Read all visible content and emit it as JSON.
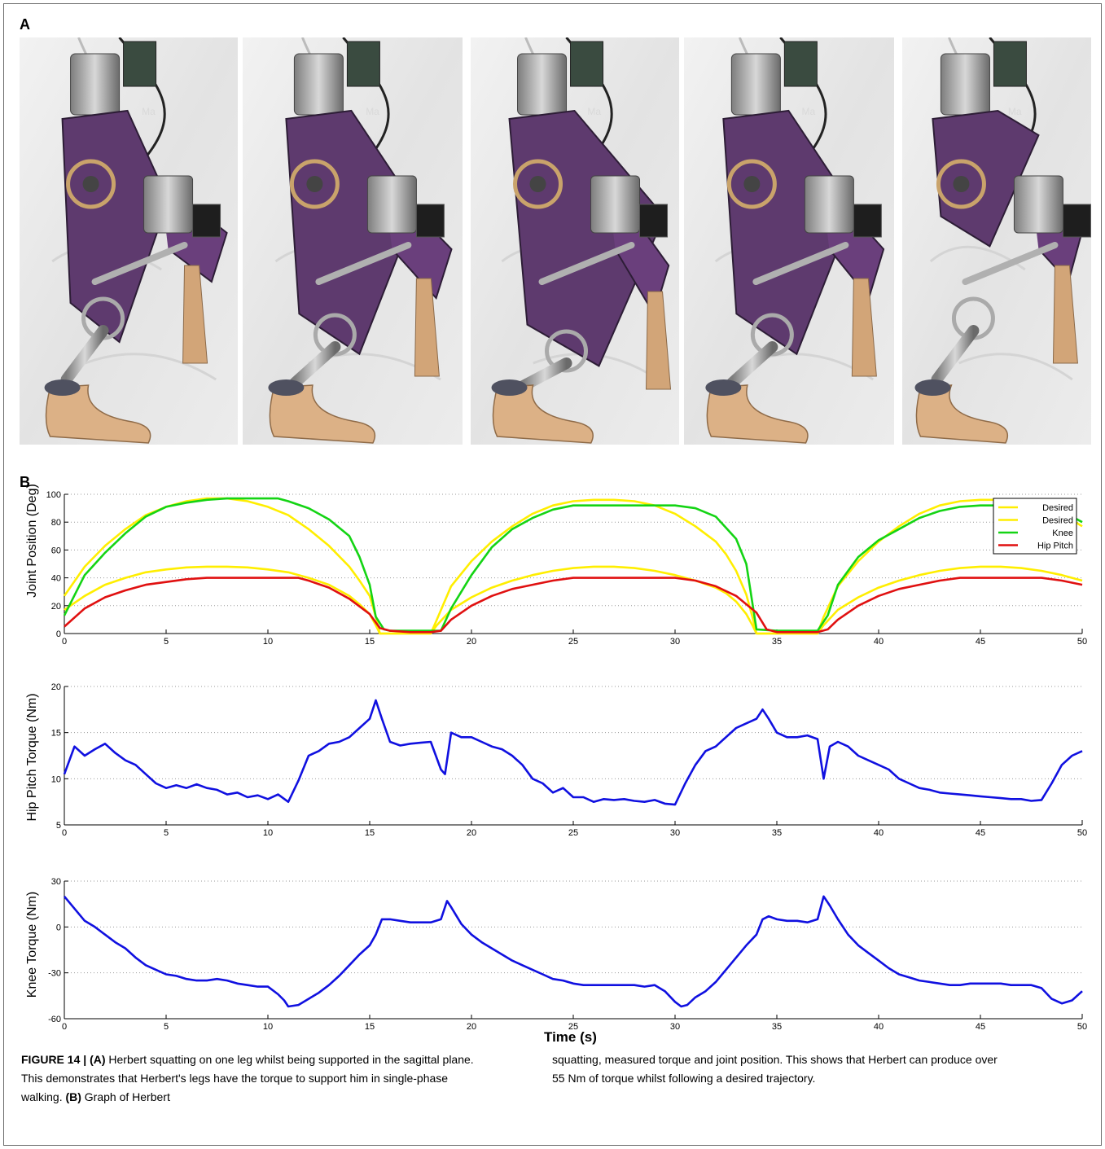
{
  "panels": {
    "a": "A",
    "b": "B"
  },
  "photos": {
    "count": 5,
    "watermark": "Ma"
  },
  "charts": [
    {
      "type": "line",
      "ylabel": "Joint Position (Deg)",
      "xlim": [
        0,
        50
      ],
      "ylim": [
        0,
        100
      ],
      "xticks": [
        0,
        5,
        10,
        15,
        20,
        25,
        30,
        35,
        40,
        45,
        50
      ],
      "yticks": [
        0,
        20,
        40,
        60,
        80,
        100
      ],
      "legend": [
        "Desired",
        "Desired",
        "Knee",
        "Hip Pitch"
      ],
      "legend_placement": "top-right",
      "colors": [
        "#ffee00",
        "#ffee00",
        "#14d414",
        "#e01010"
      ]
    },
    {
      "type": "line",
      "ylabel": "Hip Pitch Torque (Nm)",
      "xlim": [
        0,
        50
      ],
      "ylim": [
        5,
        20
      ],
      "xticks": [
        0,
        5,
        10,
        15,
        20,
        25,
        30,
        35,
        40,
        45,
        50
      ],
      "yticks": [
        5,
        10,
        15,
        20
      ],
      "colors": [
        "#1010e0"
      ]
    },
    {
      "type": "line",
      "ylabel": "Knee Torque (Nm)",
      "xlabel": "Time (s)",
      "xlim": [
        0,
        50
      ],
      "ylim": [
        -60,
        30
      ],
      "xticks": [
        0,
        5,
        10,
        15,
        20,
        25,
        30,
        35,
        40,
        45,
        50
      ],
      "yticks": [
        -60,
        -30,
        0,
        30
      ],
      "colors": [
        "#1010e0"
      ]
    }
  ],
  "chart_data": [
    {
      "type": "line",
      "xlabel": "",
      "ylabel": "Joint Position (Deg)",
      "xlim": [
        0,
        50
      ],
      "ylim": [
        0,
        100
      ],
      "grid": true,
      "legend": "top-right",
      "series": [
        {
          "name": "Desired",
          "x": [
            0,
            1,
            2,
            3,
            4,
            5,
            6,
            7,
            7.5,
            8,
            9,
            10,
            11,
            12,
            13,
            14,
            14.5,
            15,
            15.3,
            15.5,
            18,
            18.3,
            19,
            20,
            21,
            22,
            23,
            24,
            25,
            26,
            27,
            28,
            29,
            30,
            31,
            32,
            32.5,
            33,
            33.5,
            33.8,
            34,
            37,
            37.3,
            38,
            39,
            40,
            41,
            42,
            43,
            44,
            45,
            46,
            47,
            48,
            49,
            50
          ],
          "y": [
            27,
            48,
            63,
            75,
            85,
            91,
            95,
            97,
            97,
            97,
            95,
            91,
            85,
            75,
            63,
            48,
            38,
            27,
            12,
            0,
            0,
            10,
            34,
            52,
            66,
            77,
            86,
            92,
            95,
            96,
            96,
            95,
            92,
            86,
            77,
            66,
            57,
            45,
            28,
            12,
            0,
            0,
            12,
            34,
            52,
            66,
            77,
            86,
            92,
            95,
            96,
            96,
            95,
            92,
            86,
            77
          ]
        },
        {
          "name": "Desired",
          "x": [
            0,
            1,
            2,
            3,
            4,
            5,
            6,
            7,
            7.5,
            8,
            9,
            10,
            11,
            12,
            13,
            14,
            14.5,
            15,
            15.3,
            15.5,
            18,
            18.3,
            19,
            20,
            21,
            22,
            23,
            24,
            25,
            26,
            27,
            28,
            29,
            30,
            31,
            32,
            32.5,
            33,
            33.5,
            33.8,
            34,
            37,
            37.3,
            38,
            39,
            40,
            41,
            42,
            43,
            44,
            45,
            46,
            47,
            48,
            49,
            50
          ],
          "y": [
            17,
            27,
            35,
            40,
            44,
            46,
            47.5,
            48,
            48,
            48,
            47.5,
            46,
            44,
            40,
            35,
            27,
            21,
            14,
            6,
            0,
            0,
            6,
            17,
            26,
            33,
            38,
            42,
            45,
            47,
            48,
            48,
            47,
            45,
            42,
            38,
            33,
            29,
            23,
            14,
            6,
            0,
            0,
            6,
            17,
            26,
            33,
            38,
            42,
            45,
            47,
            48,
            48,
            47,
            45,
            42,
            38
          ]
        },
        {
          "name": "Knee",
          "x": [
            0,
            1,
            2,
            3,
            4,
            5,
            6,
            7,
            8,
            9,
            10,
            10.5,
            11,
            12,
            13,
            14,
            14.5,
            15,
            15.3,
            15.7,
            16,
            17,
            18,
            18.5,
            19,
            20,
            21,
            22,
            23,
            24,
            25,
            26,
            27,
            28,
            29,
            30,
            31,
            32,
            33,
            33.5,
            34,
            35,
            36,
            37,
            37.5,
            38,
            39,
            40,
            41,
            42,
            43,
            44,
            45,
            46,
            47,
            48,
            49,
            50
          ],
          "y": [
            13,
            42,
            58,
            72,
            84,
            91,
            94,
            96,
            97,
            97,
            97,
            97,
            95,
            90,
            82,
            70,
            55,
            35,
            12,
            3,
            2,
            2,
            2,
            2,
            18,
            42,
            62,
            75,
            83,
            89,
            92,
            92,
            92,
            92,
            92,
            92,
            90,
            84,
            68,
            50,
            3,
            2,
            2,
            2,
            13,
            35,
            55,
            67,
            75,
            83,
            88,
            91,
            92,
            92,
            92,
            92,
            88,
            80
          ]
        },
        {
          "name": "Hip Pitch",
          "x": [
            0,
            1,
            2,
            3,
            4,
            5,
            6,
            7,
            8,
            9,
            10,
            11,
            11.5,
            12,
            13,
            14,
            15,
            15.5,
            16,
            17,
            18,
            18.5,
            19,
            20,
            21,
            22,
            23,
            24,
            25,
            26,
            27,
            28,
            29,
            30,
            31,
            32,
            33,
            34,
            34.5,
            35,
            36,
            37,
            37.5,
            38,
            39,
            40,
            41,
            42,
            43,
            44,
            45,
            46,
            47,
            48,
            49,
            50
          ],
          "y": [
            5,
            18,
            26,
            31,
            35,
            37,
            39,
            40,
            40,
            40,
            40,
            40,
            40,
            38,
            33,
            25,
            14,
            4,
            2,
            1,
            1,
            2,
            10,
            20,
            27,
            32,
            35,
            38,
            40,
            40,
            40,
            40,
            40,
            40,
            38,
            34,
            27,
            15,
            3,
            1,
            1,
            1,
            3,
            10,
            20,
            27,
            32,
            35,
            38,
            40,
            40,
            40,
            40,
            40,
            38,
            35
          ]
        }
      ]
    },
    {
      "type": "line",
      "xlabel": "",
      "ylabel": "Hip Pitch Torque (Nm)",
      "xlim": [
        0,
        50
      ],
      "ylim": [
        5,
        20
      ],
      "grid": true,
      "series": [
        {
          "x": [
            0,
            0.5,
            1,
            1.5,
            2,
            2.5,
            3,
            3.5,
            4,
            4.5,
            5,
            5.5,
            6,
            6.5,
            7,
            7.5,
            8,
            8.5,
            9,
            9.5,
            10,
            10.5,
            11,
            11.5,
            12,
            12.5,
            13,
            13.5,
            14,
            14.5,
            15,
            15.3,
            15.6,
            16,
            16.5,
            17,
            17.5,
            18,
            18.5,
            18.7,
            19,
            19.5,
            20,
            20.5,
            21,
            21.5,
            22,
            22.5,
            23,
            23.5,
            24,
            24.5,
            25,
            25.5,
            26,
            26.5,
            27,
            27.5,
            28,
            28.5,
            29,
            29.5,
            30,
            30.5,
            31,
            31.5,
            32,
            32.5,
            33,
            33.5,
            34,
            34.3,
            34.6,
            35,
            35.5,
            36,
            36.5,
            37,
            37.3,
            37.6,
            38,
            38.5,
            39,
            39.5,
            40,
            40.5,
            41,
            41.5,
            42,
            42.5,
            43,
            43.5,
            44,
            44.5,
            45,
            45.5,
            46,
            46.5,
            47,
            47.5,
            48,
            48.5,
            49,
            49.5,
            50
          ],
          "y": [
            10.5,
            13.5,
            12.5,
            13.2,
            13.8,
            12.8,
            12,
            11.5,
            10.5,
            9.5,
            9,
            9.3,
            9,
            9.4,
            9,
            8.8,
            8.3,
            8.5,
            8,
            8.2,
            7.8,
            8.3,
            7.5,
            9.8,
            12.5,
            13,
            13.8,
            14,
            14.5,
            15.5,
            16.5,
            18.5,
            16.5,
            14,
            13.6,
            13.8,
            13.9,
            14,
            11,
            10.5,
            15,
            14.5,
            14.5,
            14,
            13.5,
            13.2,
            12.5,
            11.5,
            10,
            9.5,
            8.5,
            9,
            8,
            8,
            7.5,
            7.8,
            7.7,
            7.8,
            7.6,
            7.5,
            7.7,
            7.3,
            7.2,
            9.5,
            11.5,
            13,
            13.5,
            14.5,
            15.5,
            16,
            16.5,
            17.5,
            16.5,
            15,
            14.5,
            14.5,
            14.7,
            14.3,
            10,
            13.5,
            14,
            13.5,
            12.5,
            12,
            11.5,
            11,
            10,
            9.5,
            9,
            8.8,
            8.5,
            8.4,
            8.3,
            8.2,
            8.1,
            8,
            7.9,
            7.8,
            7.8,
            7.6,
            7.7,
            9.5,
            11.5,
            12.5,
            13
          ]
        }
      ]
    },
    {
      "type": "line",
      "xlabel": "Time (s)",
      "ylabel": "Knee Torque (Nm)",
      "xlim": [
        0,
        50
      ],
      "ylim": [
        -60,
        30
      ],
      "grid": true,
      "series": [
        {
          "x": [
            0,
            0.5,
            1,
            1.5,
            2,
            2.5,
            3,
            3.5,
            4,
            4.5,
            5,
            5.5,
            6,
            6.5,
            7,
            7.5,
            8,
            8.5,
            9,
            9.5,
            10,
            10.5,
            10.8,
            11,
            11.5,
            12,
            12.5,
            13,
            13.5,
            14,
            14.5,
            15,
            15.3,
            15.6,
            16,
            16.5,
            17,
            17.5,
            18,
            18.5,
            18.8,
            19,
            19.5,
            20,
            20.5,
            21,
            21.5,
            22,
            22.5,
            23,
            23.5,
            24,
            24.5,
            25,
            25.5,
            26,
            26.5,
            27,
            27.5,
            28,
            28.5,
            29,
            29.5,
            30,
            30.3,
            30.6,
            31,
            31.5,
            32,
            32.5,
            33,
            33.5,
            34,
            34.3,
            34.6,
            35,
            35.5,
            36,
            36.5,
            37,
            37.3,
            37.6,
            38,
            38.5,
            39,
            39.5,
            40,
            40.5,
            41,
            41.5,
            42,
            42.5,
            43,
            43.5,
            44,
            44.5,
            45,
            45.5,
            46,
            46.5,
            47,
            47.5,
            48,
            48.5,
            49,
            49.5,
            50
          ],
          "y": [
            20,
            12,
            4,
            0,
            -5,
            -10,
            -14,
            -20,
            -25,
            -28,
            -31,
            -32,
            -34,
            -35,
            -35,
            -34,
            -35,
            -37,
            -38,
            -39,
            -39,
            -44,
            -48,
            -52,
            -51,
            -47,
            -43,
            -38,
            -32,
            -25,
            -18,
            -12,
            -5,
            5,
            5,
            4,
            3,
            3,
            3,
            5,
            17,
            13,
            2,
            -5,
            -10,
            -14,
            -18,
            -22,
            -25,
            -28,
            -31,
            -34,
            -35,
            -37,
            -38,
            -38,
            -38,
            -38,
            -38,
            -38,
            -39,
            -38,
            -42,
            -49,
            -52,
            -51,
            -46,
            -42,
            -36,
            -28,
            -20,
            -12,
            -5,
            5,
            7,
            5,
            4,
            4,
            3,
            5,
            20,
            14,
            5,
            -5,
            -12,
            -17,
            -22,
            -27,
            -31,
            -33,
            -35,
            -36,
            -37,
            -38,
            -38,
            -37,
            -37,
            -37,
            -37,
            -38,
            -38,
            -38,
            -40,
            -47,
            -50,
            -48,
            -42
          ]
        }
      ]
    }
  ],
  "caption": {
    "label": "FIGURE 14 | ",
    "a_tag": "(A)",
    "a_text": " Herbert squatting on one leg whilst being supported in the sagittal plane. This demonstrates that Herbert's legs have the torque to support him in single-phase walking. ",
    "b_tag": "(B)",
    "b_text": " Graph of Herbert",
    "right_text": "squatting, measured torque and joint position. This shows that Herbert can produce over 55 Nm of torque whilst following a desired trajectory."
  }
}
